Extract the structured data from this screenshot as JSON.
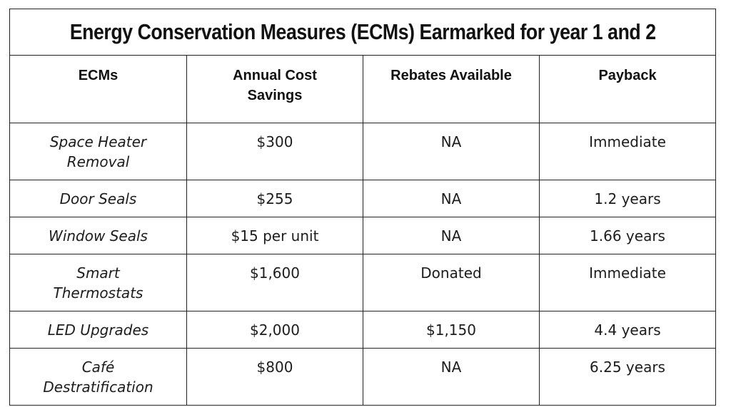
{
  "table": {
    "title": "Energy Conservation Measures (ECMs) Earmarked for year 1 and 2",
    "headers": [
      "ECMs",
      "Annual Cost\nSavings",
      "Rebates Available",
      "Payback"
    ],
    "rows": [
      {
        "ecm": "Space Heater\nRemoval",
        "savings": "$300",
        "rebates": "NA",
        "payback": "Immediate"
      },
      {
        "ecm": "Door Seals",
        "savings": "$255",
        "rebates": "NA",
        "payback": "1.2 years"
      },
      {
        "ecm": "Window Seals",
        "savings": "$15 per unit",
        "rebates": "NA",
        "payback": "1.66 years"
      },
      {
        "ecm": "Smart\nThermostats",
        "savings": "$1,600",
        "rebates": "Donated",
        "payback": "Immediate"
      },
      {
        "ecm": "LED Upgrades",
        "savings": "$2,000",
        "rebates": "$1,150",
        "payback": "4.4 years"
      },
      {
        "ecm": "Café\nDestratification",
        "savings": "$800",
        "rebates": "NA",
        "payback": "6.25 years"
      }
    ]
  }
}
